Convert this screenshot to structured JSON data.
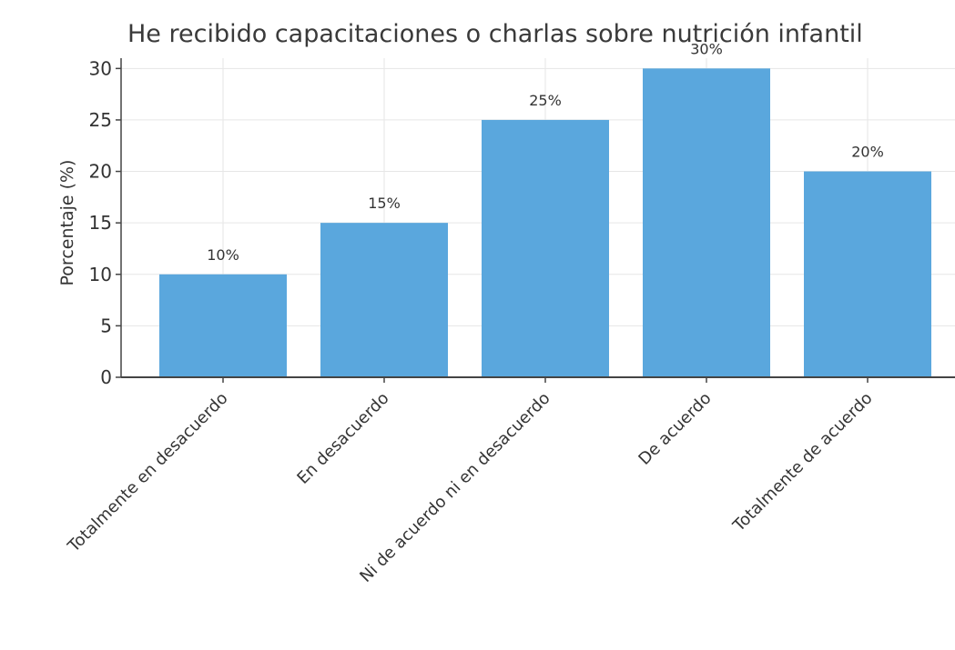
{
  "chart_data": {
    "type": "bar",
    "title": "He recibido capacitaciones o charlas sobre nutrición infantil",
    "xlabel": "",
    "ylabel": "Porcentaje (%)",
    "categories": [
      "Totalmente en desacuerdo",
      "En desacuerdo",
      "Ni de acuerdo ni en desacuerdo",
      "De acuerdo",
      "Totalmente de acuerdo"
    ],
    "values": [
      10,
      15,
      25,
      30,
      20
    ],
    "data_labels": [
      "10%",
      "15%",
      "25%",
      "30%",
      "20%"
    ],
    "ylim": [
      0,
      31
    ],
    "yticks": [
      0,
      5,
      10,
      15,
      20,
      25,
      30
    ],
    "grid": true,
    "legend": "none",
    "colors": {
      "bar": "#5aa7dd",
      "grid": "#e6e6e6",
      "axis": "#444444"
    }
  }
}
